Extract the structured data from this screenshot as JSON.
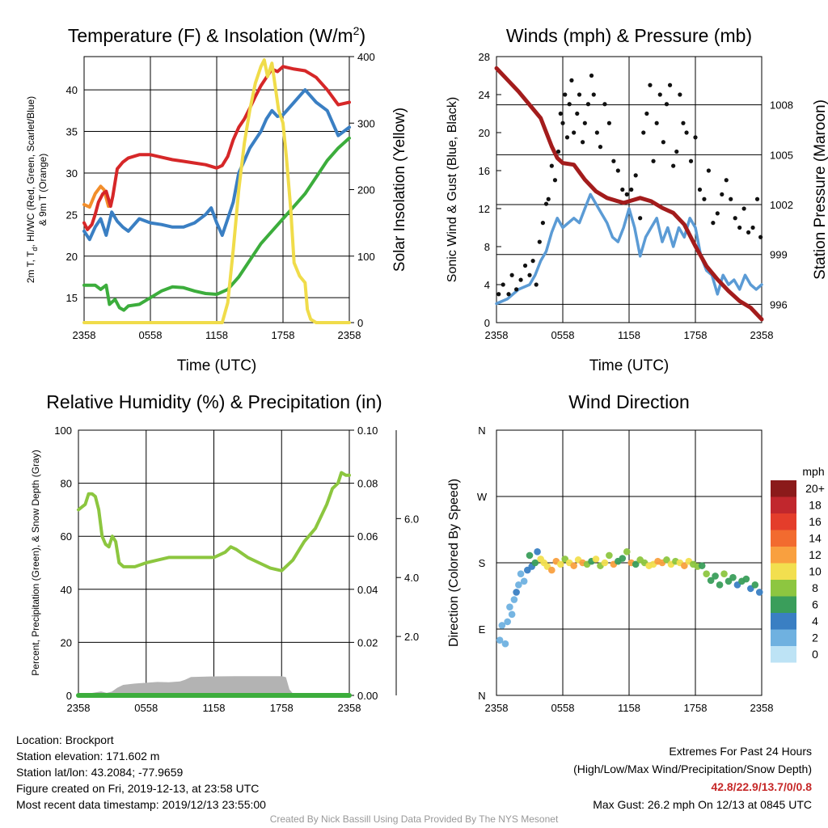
{
  "chart_data": [
    {
      "type": "line",
      "title": "Temperature (F) & Insolation (W/m",
      "title_sup": "2",
      "title_suffix": ")",
      "xlabel": "Time (UTC)",
      "ylabel": [
        "2m T, T",
        "d",
        ", HI/WC (Red, Green, Scarlet/Blue)",
        "& 9m T (Orange)"
      ],
      "y2label": "Solar Insolation (Yellow)",
      "x_ticks": [
        "2358",
        "0558",
        "1158",
        "1758",
        "2358"
      ],
      "xlim": [
        0,
        24
      ],
      "ylim": [
        12,
        44
      ],
      "y_ticks": [
        15,
        20,
        25,
        30,
        35,
        40
      ],
      "y2lim": [
        0,
        400
      ],
      "y2_ticks": [
        0,
        100,
        200,
        300,
        400
      ],
      "series": [
        {
          "color": "#f28e2b",
          "axis": "left",
          "x": [
            0,
            0.5,
            1,
            1.5,
            1.8,
            2.2
          ],
          "y": [
            26.2,
            25.9,
            27.5,
            28.4,
            28.0,
            26.0
          ]
        },
        {
          "color": "#d62728",
          "axis": "left",
          "x": [
            0,
            0.3,
            0.7,
            1,
            1.3,
            1.7,
            2.0,
            2.4,
            2.6,
            3.0,
            3.5,
            4,
            5,
            6,
            7,
            8,
            9,
            10,
            11,
            12,
            12.5,
            13,
            13.5,
            14,
            14.5,
            15,
            15.5,
            16,
            16.5,
            17,
            17.5,
            18,
            19,
            20,
            21,
            22,
            23,
            24
          ],
          "y": [
            24,
            23.2,
            23.8,
            25,
            26.5,
            27.5,
            27.8,
            26,
            27.2,
            30.5,
            31.3,
            31.8,
            32.2,
            32.2,
            31.9,
            31.6,
            31.4,
            31.2,
            31,
            30.6,
            30.9,
            32,
            34,
            35.5,
            36.5,
            37.8,
            39.2,
            40.5,
            41.5,
            42.5,
            42.2,
            42.8,
            42.5,
            42.3,
            41.5,
            40,
            38.2,
            38.5
          ]
        },
        {
          "color": "#3a7fc3",
          "axis": "left",
          "x": [
            0,
            0.5,
            1,
            1.5,
            2,
            2.5,
            3,
            3.5,
            4,
            5,
            6,
            7,
            8,
            9,
            10,
            11,
            11.5,
            12,
            12.5,
            13,
            13.5,
            14,
            14.5,
            15,
            15.5,
            16,
            16.5,
            17,
            17.5,
            18,
            19,
            20,
            21,
            22,
            23,
            24
          ],
          "y": [
            23,
            22,
            23.5,
            24.5,
            22.5,
            25.3,
            24.2,
            23.5,
            23,
            24.5,
            24,
            23.8,
            23.5,
            23.5,
            24,
            25,
            25.8,
            24,
            22.5,
            24.5,
            26.5,
            30,
            31.5,
            33,
            34,
            35,
            36.5,
            37.5,
            36.8,
            37,
            38.5,
            40,
            38.5,
            37.5,
            34.5,
            35.5
          ]
        },
        {
          "color": "#3cad3c",
          "axis": "left",
          "x": [
            0,
            1,
            1.5,
            2,
            2.3,
            2.8,
            3.2,
            3.6,
            4,
            5,
            6,
            7,
            8,
            9,
            10,
            11,
            12,
            13,
            14,
            15,
            16,
            17,
            18,
            19,
            20,
            21,
            22,
            23,
            24
          ],
          "y": [
            16.5,
            16.5,
            16,
            16.5,
            14.2,
            14.8,
            13.8,
            13.5,
            14,
            14.2,
            15,
            15.8,
            16.3,
            16.2,
            15.8,
            15.5,
            15.4,
            16,
            17.5,
            19.5,
            21.5,
            23,
            24.5,
            26,
            27.5,
            29.5,
            31.5,
            33,
            34.2
          ]
        },
        {
          "color": "#f0dc4a",
          "axis": "right",
          "x": [
            0,
            12.5,
            13,
            13.5,
            14,
            14.5,
            15,
            15.5,
            16,
            16.3,
            16.6,
            17,
            17.3,
            17.6,
            18,
            18.3,
            18.7,
            19,
            19.5,
            20,
            20.2,
            20.5,
            21,
            24
          ],
          "y": [
            0,
            0,
            30,
            110,
            200,
            270,
            320,
            360,
            385,
            395,
            370,
            390,
            355,
            320,
            300,
            250,
            170,
            90,
            70,
            60,
            20,
            5,
            0,
            0
          ]
        }
      ]
    },
    {
      "type": "line",
      "title": "Winds (mph) & Pressure (mb)",
      "xlabel": "Time (UTC)",
      "ylabel": "Sonic Wind & Gust (Blue, Black)",
      "y2label": "Station Pressure (Maroon)",
      "x_ticks": [
        "2358",
        "0558",
        "1158",
        "1758",
        "2358"
      ],
      "xlim": [
        0,
        24
      ],
      "ylim": [
        0,
        28
      ],
      "y_ticks": [
        0,
        4,
        8,
        12,
        16,
        20,
        24,
        28
      ],
      "y2lim": [
        994.9,
        1010.9
      ],
      "y2_ticks": [
        996,
        999,
        1002,
        1005,
        1008
      ],
      "series": [
        {
          "color": "#5b9bd5",
          "axis": "left",
          "x": [
            0,
            1,
            2,
            3,
            3.5,
            4,
            4.5,
            5,
            5.5,
            6,
            7,
            7.5,
            8,
            8.5,
            9,
            9.5,
            10,
            10.5,
            11,
            11.5,
            12,
            12.5,
            13,
            13.5,
            14,
            14.5,
            15,
            15.5,
            16,
            16.5,
            17,
            17.5,
            18,
            18.5,
            19,
            19.5,
            20,
            20.5,
            21,
            21.5,
            22,
            22.5,
            23,
            23.5,
            24
          ],
          "y": [
            2,
            2.5,
            3.5,
            4,
            5,
            6.5,
            7.5,
            9.5,
            11,
            10,
            11,
            10.5,
            12,
            13.5,
            12.5,
            11.5,
            10.5,
            9,
            8.5,
            10,
            12,
            10,
            7,
            9,
            10,
            11,
            8.5,
            10,
            8,
            10,
            9,
            11,
            10,
            7,
            5.5,
            5,
            3,
            5,
            4,
            4.5,
            3.5,
            5,
            4,
            3.5,
            4
          ]
        },
        {
          "color": "#a31c1c",
          "axis": "right",
          "x": [
            0,
            1,
            2,
            3,
            4,
            5,
            5.5,
            6,
            7,
            8,
            9,
            10,
            11,
            11.5,
            12,
            13,
            14,
            14.5,
            15,
            16,
            17,
            18,
            19,
            20,
            21,
            22,
            23,
            24
          ],
          "y": [
            1010.2,
            1009.5,
            1008.8,
            1008,
            1007.2,
            1005.5,
            1004.8,
            1004.5,
            1004.4,
            1003.5,
            1002.8,
            1002.4,
            1002.2,
            1002.1,
            1002.2,
            1002.4,
            1002.2,
            1002,
            1001.8,
            1001.5,
            1000.8,
            999.5,
            998.3,
            997.5,
            996.8,
            996.2,
            995.8,
            995.1
          ]
        },
        {
          "color": "#111111",
          "axis": "left",
          "mode": "points",
          "x": [
            0.2,
            0.6,
            1.1,
            1.4,
            1.8,
            2.2,
            2.6,
            3.0,
            3.3,
            3.6,
            3.9,
            4.2,
            4.5,
            4.7,
            5.0,
            5.3,
            5.6,
            5.8,
            6.0,
            6.2,
            6.4,
            6.6,
            6.8,
            7.0,
            7.3,
            7.5,
            7.8,
            8.0,
            8.3,
            8.6,
            8.8,
            9.1,
            9.4,
            9.8,
            10.2,
            10.6,
            11.0,
            11.4,
            11.8,
            12.2,
            12.6,
            13.0,
            13.3,
            13.6,
            13.9,
            14.2,
            14.5,
            14.8,
            15.1,
            15.4,
            15.7,
            16.0,
            16.3,
            16.6,
            16.9,
            17.2,
            17.6,
            18.0,
            18.4,
            18.8,
            19.2,
            19.6,
            20.0,
            20.4,
            20.8,
            21.2,
            21.6,
            22.0,
            22.4,
            22.8,
            23.2,
            23.6,
            23.9
          ],
          "y": [
            3,
            4,
            3,
            5,
            3.5,
            4.5,
            6,
            5,
            6.5,
            4,
            8.5,
            10.5,
            12.5,
            13,
            16.5,
            15,
            18,
            22,
            21,
            24,
            19.5,
            23,
            25.5,
            20,
            22,
            24,
            19,
            21,
            23,
            26,
            24,
            20,
            18.5,
            23,
            21,
            17,
            16,
            14,
            13.5,
            14,
            15.5,
            11,
            20,
            22,
            25,
            17,
            21,
            24,
            19,
            23,
            25,
            16.5,
            18,
            24,
            21,
            20,
            17,
            19.5,
            14,
            13,
            16,
            10.5,
            11.5,
            13.5,
            15,
            13,
            11,
            10,
            12,
            9.5,
            10,
            13,
            9
          ]
        }
      ]
    },
    {
      "type": "line",
      "title": "Relative Humidity (%) & Precipitation (in)",
      "ylabel": "Percent, Precipitation (Green), & Snow Depth (Gray)",
      "x_ticks": [
        "2358",
        "0558",
        "1158",
        "1758",
        "2358"
      ],
      "xlim": [
        0,
        24
      ],
      "ylim": [
        0,
        100
      ],
      "y_ticks": [
        0,
        20,
        40,
        60,
        80,
        100
      ],
      "y2lim": [
        0,
        0.1
      ],
      "y2_ticks": [
        "0.00",
        "0.02",
        "0.04",
        "0.06",
        "0.08",
        "0.10"
      ],
      "y3lim": [
        0,
        9
      ],
      "y3_ticks": [
        "2.0",
        "4.0",
        "6.0"
      ],
      "series": [
        {
          "color": "#b3b3b3",
          "axis": "left",
          "fill": true,
          "x": [
            0,
            1,
            2,
            2.5,
            3,
            3.5,
            4,
            5,
            6,
            7,
            8,
            9,
            9.5,
            10,
            12,
            14,
            16,
            18,
            18.3,
            18.6,
            19,
            24
          ],
          "y": [
            0,
            0.3,
            1,
            0.5,
            1,
            2.5,
            3.5,
            4,
            4.3,
            4.6,
            4.5,
            4.8,
            5.5,
            6.5,
            6.7,
            6.8,
            6.8,
            6.8,
            6.5,
            2,
            0,
            0
          ]
        },
        {
          "color": "#8cc63f",
          "axis": "left",
          "x": [
            0,
            0.3,
            0.6,
            0.9,
            1.2,
            1.5,
            1.8,
            2.1,
            2.4,
            2.7,
            3.0,
            3.3,
            3.6,
            4,
            5,
            6,
            7,
            8,
            9,
            10,
            11,
            12,
            12.5,
            13,
            13.5,
            14,
            15,
            16,
            17,
            18,
            19,
            20,
            21,
            22,
            22.5,
            23,
            23.3,
            23.7,
            24
          ],
          "y": [
            70,
            71,
            72,
            76,
            76,
            75,
            70,
            60,
            57,
            56,
            60,
            58,
            50,
            48.5,
            48.5,
            50,
            51,
            52,
            52,
            52,
            52,
            52,
            53,
            54,
            56,
            55,
            52,
            50,
            48,
            47,
            51,
            58,
            63,
            72,
            78,
            80,
            84,
            83,
            83
          ]
        },
        {
          "color": "#3cad3c",
          "axis": "left",
          "x": [
            0,
            24
          ],
          "y": [
            0,
            0
          ]
        }
      ]
    },
    {
      "type": "scatter",
      "title": "Wind Direction",
      "ylabel": "Direction (Colored By Speed)",
      "x_ticks": [
        "2358",
        "0558",
        "1158",
        "1758",
        "2358"
      ],
      "xlim": [
        0,
        24
      ],
      "y_ticks": [
        "N",
        "E",
        "S",
        "W",
        "N"
      ],
      "ylim": [
        0,
        360
      ],
      "legend_title": "mph",
      "legend_labels": [
        "20+",
        "18",
        "16",
        "14",
        "12",
        "10",
        "8",
        "6",
        "4",
        "2",
        "0"
      ],
      "legend_colors": [
        "#8b1a1a",
        "#c1272d",
        "#e43d2b",
        "#f26b2f",
        "#f9a03f",
        "#f2df4f",
        "#8dc640",
        "#3a9e5b",
        "#3a7fc3",
        "#6fb1e0",
        "#bde3f5"
      ],
      "points": {
        "x": [
          0.3,
          0.5,
          0.8,
          1.0,
          1.2,
          1.4,
          1.6,
          1.8,
          2.0,
          2.2,
          2.5,
          2.8,
          3.0,
          3.2,
          3.5,
          3.7,
          4.0,
          4.3,
          4.6,
          5.0,
          5.4,
          5.8,
          6.2,
          6.6,
          7.0,
          7.4,
          7.8,
          8.2,
          8.6,
          9.0,
          9.4,
          9.8,
          10.2,
          10.6,
          11.0,
          11.4,
          11.8,
          12.2,
          12.6,
          13.0,
          13.4,
          13.8,
          14.2,
          14.6,
          15.0,
          15.4,
          15.8,
          16.2,
          16.6,
          17.0,
          17.4,
          17.8,
          18.2,
          18.6,
          19.0,
          19.4,
          19.8,
          20.2,
          20.6,
          21.0,
          21.4,
          21.8,
          22.2,
          22.6,
          23.0,
          23.4,
          23.8
        ],
        "y": [
          75,
          95,
          70,
          100,
          120,
          110,
          130,
          140,
          150,
          165,
          155,
          170,
          190,
          175,
          180,
          195,
          185,
          180,
          175,
          170,
          182,
          178,
          185,
          180,
          176,
          184,
          180,
          178,
          182,
          185,
          176,
          180,
          190,
          178,
          182,
          186,
          195,
          180,
          178,
          184,
          180,
          176,
          178,
          182,
          180,
          184,
          178,
          182,
          180,
          176,
          182,
          178,
          175,
          176,
          165,
          156,
          162,
          150,
          165,
          155,
          160,
          150,
          155,
          158,
          145,
          150,
          140
        ],
        "speed": [
          1,
          1,
          1.5,
          2,
          1,
          2,
          2,
          3,
          2,
          1.5,
          2,
          3,
          5,
          4,
          6,
          4,
          10,
          9,
          10,
          11,
          12,
          10,
          8,
          9,
          11,
          10,
          12,
          8,
          6,
          9,
          7,
          10,
          8,
          12,
          6,
          5,
          7,
          11,
          6,
          7,
          8,
          10,
          9,
          12,
          11,
          8,
          10,
          7,
          9,
          12,
          10,
          7,
          8,
          6,
          8,
          5,
          6,
          5,
          7,
          6,
          5,
          4,
          6,
          5,
          4,
          5,
          4
        ]
      }
    }
  ],
  "info": {
    "location": "Location: Brockport",
    "elevation": "Station elevation: 171.602 m",
    "latlon": "Station lat/lon: 43.2084; -77.9659",
    "created": "Figure created on Fri, 2019-12-13, at 23:58 UTC",
    "recent": "Most recent data timestamp: 2019/12/13 23:55:00"
  },
  "extremes": {
    "title": "Extremes For Past 24 Hours",
    "subtitle": "(High/Low/Max Wind/Precipitation/Snow Depth)",
    "values": "42.8/22.9/13.7/0/0.8",
    "gust": "Max Gust: 26.2 mph On 12/13 at 0845 UTC"
  },
  "credit": "Created By Nick Bassill Using Data Provided By The NYS Mesonet"
}
